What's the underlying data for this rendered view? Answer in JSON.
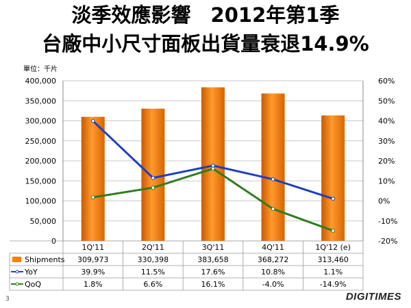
{
  "title_line1": "淡季效應影響　2012年第1季",
  "title_line2": "台廠中小尺寸面板出貨量衰退14.9%",
  "unit_label": "單位：千片",
  "page_number": "3",
  "logo_text": "DIGITIMES",
  "colors": {
    "bar": "#ff7f00",
    "yoy": "#1f3fbf",
    "qoq": "#2e7d1e",
    "grid": "#c8c8c8"
  },
  "chart_data": {
    "type": "bar",
    "categories": [
      "1Q'11",
      "2Q'11",
      "3Q'11",
      "4Q'11",
      "1Q'12 (e)"
    ],
    "series": [
      {
        "name": "Shipments",
        "type": "bar",
        "axis": "left",
        "values": [
          309973,
          330398,
          383658,
          368272,
          313460
        ],
        "labels": [
          "309,973",
          "330,398",
          "383,658",
          "368,272",
          "313,460"
        ]
      },
      {
        "name": "YoY",
        "type": "line",
        "axis": "right",
        "values": [
          39.9,
          11.5,
          17.6,
          10.8,
          1.1
        ],
        "labels": [
          "39.9%",
          "11.5%",
          "17.6%",
          "10.8%",
          "1.1%"
        ]
      },
      {
        "name": "QoQ",
        "type": "line",
        "axis": "right",
        "values": [
          1.8,
          6.6,
          16.1,
          -4.0,
          -14.9
        ],
        "labels": [
          "1.8%",
          "6.6%",
          "16.1%",
          "-4.0%",
          "-14.9%"
        ]
      }
    ],
    "ylim_left": [
      0,
      400000
    ],
    "ylim_right": [
      -20,
      60
    ],
    "left_ticks": [
      "400,000",
      "350,000",
      "300,000",
      "250,000",
      "200,000",
      "150,000",
      "100,000",
      "50,000",
      "0"
    ],
    "right_ticks": [
      "60%",
      "50%",
      "40%",
      "30%",
      "20%",
      "10%",
      "0%",
      "-10%",
      "-20%"
    ],
    "grid": true,
    "legend": "data-table"
  }
}
